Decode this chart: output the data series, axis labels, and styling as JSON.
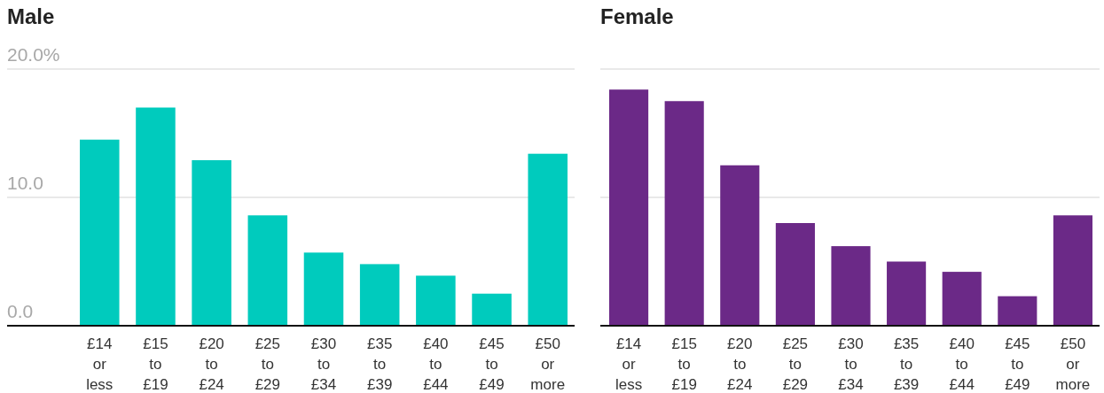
{
  "chart_data": [
    {
      "type": "bar",
      "title": "Male",
      "categories": [
        "£14 or less",
        "£15 to £19",
        "£20 to £24",
        "£25 to £29",
        "£30 to £34",
        "£35 to £39",
        "£40 to £44",
        "£45 to £49",
        "£50 or more"
      ],
      "values": [
        14.5,
        17.0,
        12.9,
        8.6,
        5.7,
        4.8,
        3.9,
        2.5,
        13.4
      ],
      "color": "#00cbbd",
      "ylim": [
        0,
        20
      ],
      "yticks": [
        {
          "value": 0,
          "label": "0.0"
        },
        {
          "value": 10,
          "label": "10.0"
        },
        {
          "value": 20,
          "label": "20.0%"
        }
      ],
      "grid": "y"
    },
    {
      "type": "bar",
      "title": "Female",
      "categories": [
        "£14 or less",
        "£15 to £19",
        "£20 to £24",
        "£25 to £29",
        "£30 to £34",
        "£35 to £39",
        "£40 to £44",
        "£45 to £49",
        "£50 or more"
      ],
      "values": [
        18.4,
        17.5,
        12.5,
        8.0,
        6.2,
        5.0,
        4.2,
        2.3,
        8.6
      ],
      "color": "#6b2987",
      "ylim": [
        0,
        20
      ],
      "yticks": [
        0,
        10,
        20
      ],
      "grid": "y",
      "tick_labels": "x"
    }
  ]
}
